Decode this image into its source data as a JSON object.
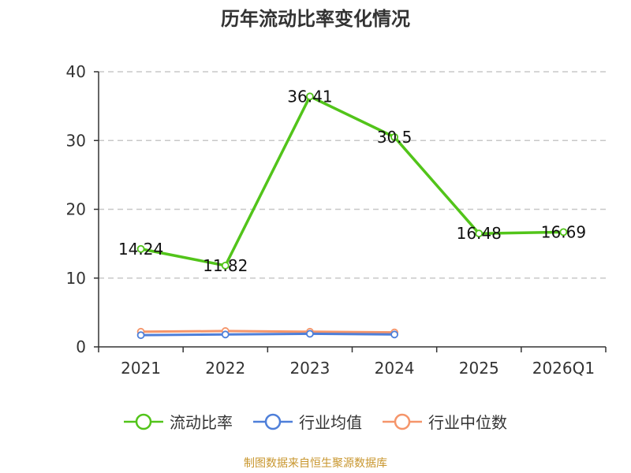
{
  "title": "历年流动比率变化情况",
  "source": "制图数据来自恒生聚源数据库",
  "colors": {
    "current_ratio": "#52c41a",
    "industry_mean": "#4e7fd9",
    "industry_median": "#f5956a",
    "grid": "#c8c8c8",
    "axis": "#333333"
  },
  "legend": [
    {
      "label": "流动比率",
      "color": "#52c41a"
    },
    {
      "label": "行业均值",
      "color": "#4e7fd9"
    },
    {
      "label": "行业中位数",
      "color": "#f5956a"
    }
  ],
  "chart_data": {
    "type": "line",
    "title": "历年流动比率变化情况",
    "categories": [
      "2021",
      "2022",
      "2023",
      "2024",
      "2025",
      "2026Q1"
    ],
    "y_ticks": [
      0,
      10,
      20,
      30,
      40
    ],
    "ylim": [
      0,
      40
    ],
    "grid": true,
    "legend_position": "bottom",
    "series": [
      {
        "name": "流动比率",
        "values": [
          14.24,
          11.82,
          36.41,
          30.5,
          16.48,
          16.69
        ],
        "labels": [
          "14.24",
          "11.82",
          "36.41",
          "30.5",
          "16.48",
          "16.69"
        ],
        "color": "#52c41a"
      },
      {
        "name": "行业均值",
        "values": [
          1.7,
          1.8,
          1.9,
          1.8,
          null,
          null
        ],
        "color": "#4e7fd9"
      },
      {
        "name": "行业中位数",
        "values": [
          2.2,
          2.3,
          2.2,
          2.1,
          null,
          null
        ],
        "color": "#f5956a"
      }
    ]
  }
}
